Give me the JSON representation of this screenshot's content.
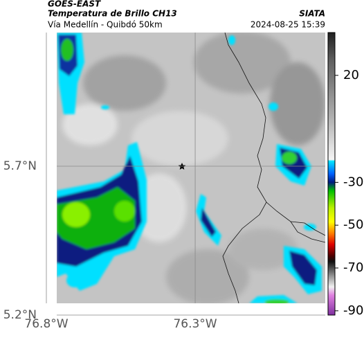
{
  "header": {
    "satellite": "GOES-EAST",
    "product": "Temperatura de Brillo CH13",
    "agency": "SIATA",
    "route": "Vía Medellín - Quibdó 50km",
    "timestamp": "2024-08-25 15:39"
  },
  "map": {
    "xlim": [
      -76.8,
      -75.863
    ],
    "ylim": [
      5.2,
      6.149
    ],
    "xticks": [
      {
        "value": -76.8,
        "label": "76.8°W"
      },
      {
        "value": -76.3,
        "label": "76.3°W"
      }
    ],
    "yticks": [
      {
        "value": 5.2,
        "label": "5.2°N"
      },
      {
        "value": 5.7,
        "label": "5.7°N"
      }
    ],
    "grid": true
  },
  "colorbar": {
    "lim": [
      -92,
      40
    ],
    "ticks": [
      20,
      -30,
      -50,
      -70,
      -90
    ]
  }
}
